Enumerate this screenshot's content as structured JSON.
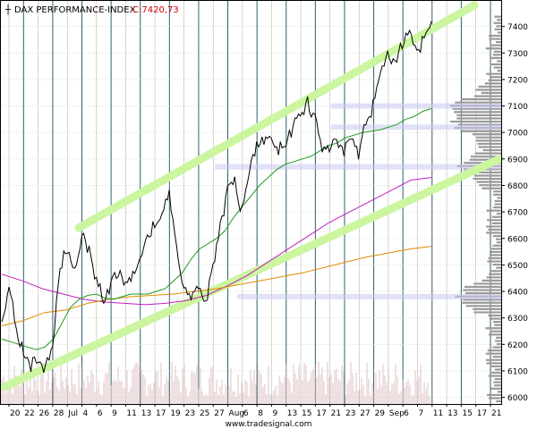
{
  "chart_data": {
    "type": "line",
    "title": "DAX PERFORMANCE-INDEX",
    "last_close_label": "C:7420,73",
    "watermark": "www.tradesignal.com",
    "ylim": [
      5975,
      7500
    ],
    "yticks": [
      6000,
      6100,
      6200,
      6300,
      6400,
      6500,
      6600,
      6700,
      6800,
      6900,
      7000,
      7100,
      7200,
      7300,
      7400
    ],
    "x_tick_labels": [
      "20",
      "22",
      "26",
      "28",
      "Jul",
      "4",
      "6",
      "9",
      "11",
      "13",
      "17",
      "19",
      "23",
      "25",
      "27",
      "Aug",
      "6",
      "8",
      "9",
      "13",
      "15",
      "17",
      "21",
      "23",
      "27",
      "29",
      "Sep",
      "6",
      "7",
      "11",
      "13",
      "15",
      "17",
      "21"
    ],
    "price": [
      6290,
      6410,
      6270,
      6160,
      6120,
      6150,
      6110,
      6180,
      6500,
      6560,
      6480,
      6610,
      6550,
      6440,
      6380,
      6420,
      6480,
      6420,
      6450,
      6520,
      6600,
      6650,
      6700,
      6760,
      6550,
      6420,
      6380,
      6400,
      6360,
      6480,
      6650,
      6770,
      6820,
      6700,
      6840,
      6950,
      6960,
      6980,
      6940,
      6970,
      7020,
      7060,
      7110,
      7050,
      6940,
      6950,
      6980,
      6930,
      6980,
      6920,
      7040,
      7100,
      7250,
      7300,
      7260,
      7330,
      7400,
      7300,
      7350,
      7420
    ],
    "moving_avg_fast": [
      6220,
      6210,
      6200,
      6190,
      6180,
      6190,
      6220,
      6280,
      6340,
      6370,
      6385,
      6390,
      6375,
      6370,
      6380,
      6390,
      6390,
      6390,
      6400,
      6410,
      6440,
      6470,
      6520,
      6560,
      6580,
      6600,
      6630,
      6680,
      6720,
      6760,
      6800,
      6830,
      6860,
      6880,
      6890,
      6900,
      6910,
      6930,
      6950,
      6960,
      6980,
      6990,
      7000,
      7005,
      7010,
      7020,
      7030,
      7050,
      7060,
      7080,
      7090
    ],
    "moving_avg_slow": [
      6270,
      6290,
      6320,
      6330,
      6355,
      6370,
      6380,
      6385,
      6390,
      6400,
      6410,
      6425,
      6440,
      6455,
      6470,
      6490,
      6510,
      6530,
      6545,
      6560,
      6570
    ],
    "moving_avg_mid": [
      6465,
      6440,
      6410,
      6390,
      6370,
      6360,
      6355,
      6350,
      6355,
      6365,
      6385,
      6420,
      6460,
      6510,
      6560,
      6610,
      6660,
      6700,
      6740,
      6780,
      6820,
      6830
    ],
    "channel_upper": [
      6640,
      7480
    ],
    "channel_lower": [
      6040,
      6900
    ],
    "volume_profile_peaks": [
      6870,
      6380,
      7020,
      7100
    ]
  }
}
